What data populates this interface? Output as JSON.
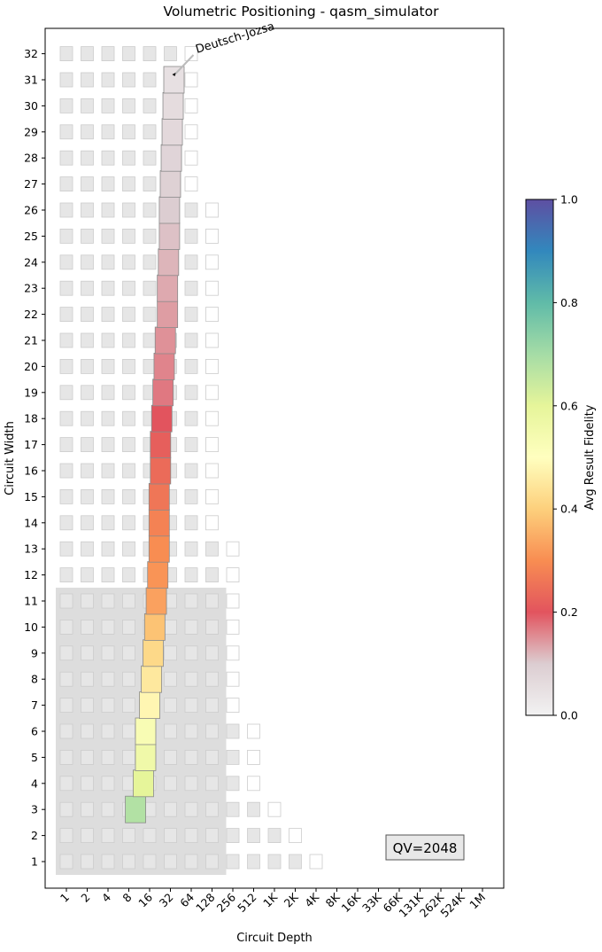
{
  "chart_data": {
    "type": "heatmap",
    "title": "Volumetric Positioning - qasm_simulator",
    "xlabel": "Circuit Depth",
    "ylabel": "Circuit Width",
    "x_tick_labels": [
      "1",
      "2",
      "4",
      "8",
      "16",
      "32",
      "64",
      "128",
      "256",
      "512",
      "1K",
      "2K",
      "4K",
      "8K",
      "16K",
      "33K",
      "66K",
      "131K",
      "262K",
      "524K",
      "1M"
    ],
    "y_ticks": [
      1,
      2,
      3,
      4,
      5,
      6,
      7,
      8,
      9,
      10,
      11,
      12,
      13,
      14,
      15,
      16,
      17,
      18,
      19,
      20,
      21,
      22,
      23,
      24,
      25,
      26,
      27,
      28,
      29,
      30,
      31,
      32
    ],
    "x_scale": "log2",
    "qv_label": "QV=2048",
    "qv_region": {
      "max_width": 11,
      "max_depth_exponent": 7
    },
    "grid_cells": {
      "note_values": "filled = 1, outlined = 0; per circuit width, list of depth exponents (2^k)",
      "filled_max_exponent_by_width": {
        "1": 11,
        "2": 10,
        "3": 9,
        "4": 8,
        "5": 8,
        "6": 8,
        "7": 7,
        "8": 7,
        "9": 7,
        "10": 7,
        "11": 7,
        "12": 7,
        "13": 7,
        "14": 6,
        "15": 6,
        "16": 6,
        "17": 6,
        "18": 6,
        "19": 6,
        "20": 6,
        "21": 6,
        "22": 6,
        "23": 6,
        "24": 6,
        "25": 6,
        "26": 6,
        "27": 5,
        "28": 5,
        "29": 5,
        "30": 5,
        "31": 5,
        "32": 5
      },
      "outlined_max_exponent_by_width": {
        "1": 12,
        "2": 11,
        "3": 10,
        "4": 9,
        "5": 9,
        "6": 9,
        "7": 8,
        "8": 8,
        "9": 8,
        "10": 8,
        "11": 8,
        "12": 8,
        "13": 8,
        "14": 7,
        "15": 7,
        "16": 7,
        "17": 7,
        "18": 7,
        "19": 7,
        "20": 7,
        "21": 7,
        "22": 7,
        "23": 7,
        "24": 7,
        "25": 7,
        "26": 7,
        "27": 6,
        "28": 6,
        "29": 6,
        "30": 6,
        "31": 6,
        "32": 6
      }
    },
    "series": [
      {
        "name": "Deutsch-Jozsa",
        "annotation": "Deutsch-Jozsa",
        "points": [
          {
            "width": 3,
            "depth": 10,
            "fidelity": 0.68
          },
          {
            "width": 4,
            "depth": 13,
            "fidelity": 0.6
          },
          {
            "width": 5,
            "depth": 14,
            "fidelity": 0.56
          },
          {
            "width": 6,
            "depth": 14,
            "fidelity": 0.53
          },
          {
            "width": 7,
            "depth": 16,
            "fidelity": 0.48
          },
          {
            "width": 8,
            "depth": 17,
            "fidelity": 0.45
          },
          {
            "width": 9,
            "depth": 18,
            "fidelity": 0.42
          },
          {
            "width": 10,
            "depth": 19,
            "fidelity": 0.38
          },
          {
            "width": 11,
            "depth": 20,
            "fidelity": 0.33
          },
          {
            "width": 12,
            "depth": 21,
            "fidelity": 0.31
          },
          {
            "width": 13,
            "depth": 22,
            "fidelity": 0.3
          },
          {
            "width": 14,
            "depth": 22,
            "fidelity": 0.28
          },
          {
            "width": 15,
            "depth": 22,
            "fidelity": 0.26
          },
          {
            "width": 16,
            "depth": 23,
            "fidelity": 0.24
          },
          {
            "width": 17,
            "depth": 23,
            "fidelity": 0.22
          },
          {
            "width": 18,
            "depth": 24,
            "fidelity": 0.2
          },
          {
            "width": 19,
            "depth": 25,
            "fidelity": 0.17
          },
          {
            "width": 20,
            "depth": 26,
            "fidelity": 0.16
          },
          {
            "width": 21,
            "depth": 27,
            "fidelity": 0.15
          },
          {
            "width": 22,
            "depth": 29,
            "fidelity": 0.14
          },
          {
            "width": 23,
            "depth": 29,
            "fidelity": 0.13
          },
          {
            "width": 24,
            "depth": 30,
            "fidelity": 0.12
          },
          {
            "width": 25,
            "depth": 31,
            "fidelity": 0.11
          },
          {
            "width": 26,
            "depth": 31,
            "fidelity": 0.1
          },
          {
            "width": 27,
            "depth": 32,
            "fidelity": 0.09
          },
          {
            "width": 28,
            "depth": 33,
            "fidelity": 0.08
          },
          {
            "width": 29,
            "depth": 34,
            "fidelity": 0.07
          },
          {
            "width": 30,
            "depth": 35,
            "fidelity": 0.06
          },
          {
            "width": 31,
            "depth": 36,
            "fidelity": 0.05
          }
        ]
      }
    ],
    "colorbar": {
      "label": "Avg Result Fidelity",
      "range": [
        0,
        1
      ],
      "tick_labels": [
        "0.0",
        "0.2",
        "0.4",
        "0.6",
        "0.8",
        "1.0"
      ],
      "colormap": "Spectral (white at 0)"
    },
    "colors": {
      "filled_cell": "#e6e6e6",
      "outlined_cell_stroke": "#cccccc",
      "qv_region": "#dddddd",
      "annotation_text": "#555555"
    }
  }
}
